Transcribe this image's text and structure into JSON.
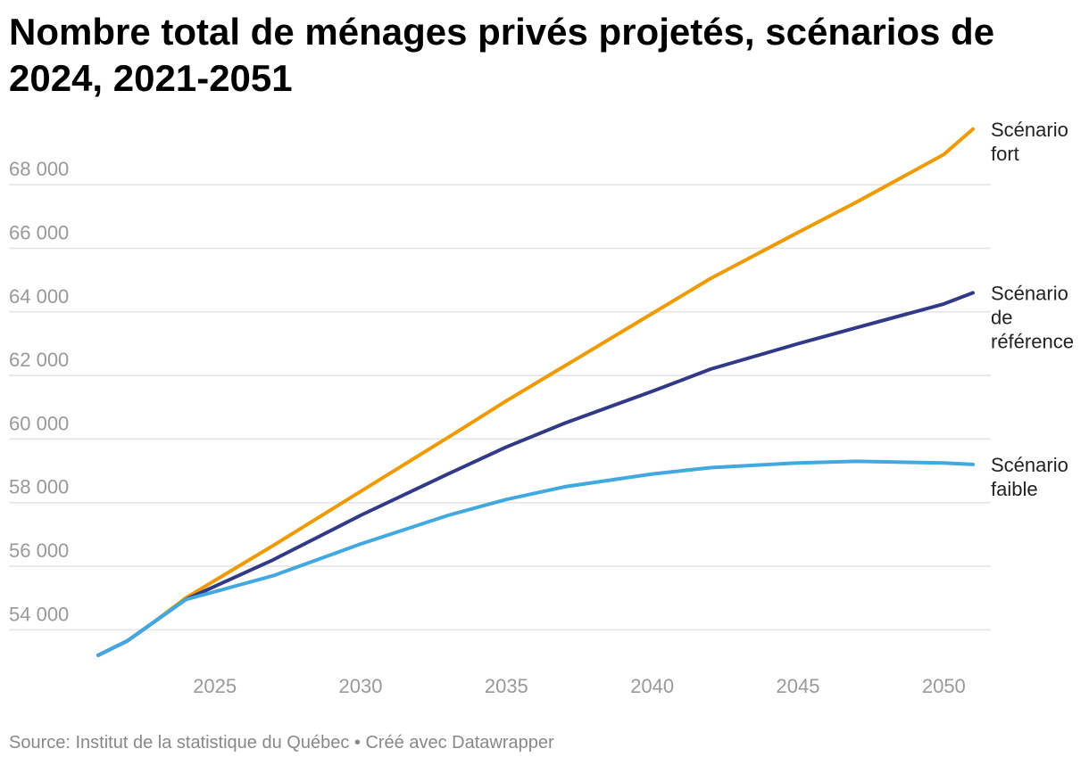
{
  "chart_data": {
    "type": "line",
    "title": "Nombre total de ménages privés projetés, scénarios de 2024, 2021-2051",
    "source": "Source: Institut de la statistique du Québec • Créé avec Datawrapper",
    "x": [
      2021,
      2022,
      2023,
      2024,
      2027,
      2030,
      2033,
      2035,
      2037,
      2040,
      2042,
      2045,
      2047,
      2050,
      2051
    ],
    "x_ticks": [
      "2025",
      "2030",
      "2035",
      "2040",
      "2045",
      "2050"
    ],
    "y_ticks": [
      "54 000",
      "56 000",
      "58 000",
      "60 000",
      "62 000",
      "64 000",
      "66 000",
      "68 000"
    ],
    "xlim": [
      2021,
      2051
    ],
    "ylim": [
      53000,
      69800
    ],
    "grid": true,
    "series": [
      {
        "name": "Scénario fort",
        "label_lines": [
          "Scénario",
          "fort"
        ],
        "color": "#ee9a00",
        "values": [
          53200,
          53650,
          54300,
          55000,
          56650,
          58350,
          60050,
          61200,
          62300,
          63950,
          65050,
          66500,
          67450,
          68950,
          69750
        ]
      },
      {
        "name": "Scénario de référence",
        "label_lines": [
          "Scénario",
          "de",
          "référence"
        ],
        "color": "#323a87",
        "values": [
          53200,
          53650,
          54300,
          54950,
          56200,
          57600,
          58900,
          59750,
          60500,
          61500,
          62200,
          63000,
          63500,
          64250,
          64600
        ]
      },
      {
        "name": "Scénario faible",
        "label_lines": [
          "Scénario",
          "faible"
        ],
        "color": "#41a8e0",
        "values": [
          53200,
          53650,
          54300,
          54950,
          55700,
          56700,
          57600,
          58100,
          58500,
          58900,
          59100,
          59250,
          59300,
          59250,
          59200
        ]
      }
    ]
  }
}
